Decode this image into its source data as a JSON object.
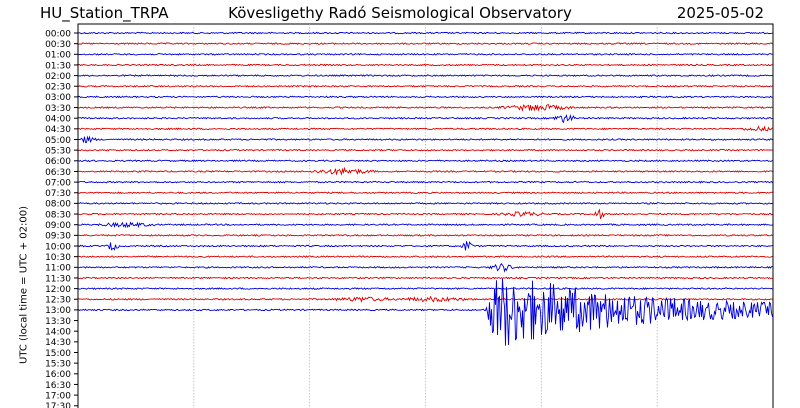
{
  "header": {
    "station": "HU_Station_TRPA",
    "observatory": "Kövesligethy Radó Seismological Observatory",
    "date": "2025-05-02"
  },
  "chart_data": {
    "type": "line",
    "title": "Kövesligethy Radó Seismological Observatory",
    "ylabel": "UTC (local time = UTC + 02:00)",
    "rows": [
      "00:00",
      "00:30",
      "01:00",
      "01:30",
      "02:00",
      "02:30",
      "03:00",
      "03:30",
      "04:00",
      "04:30",
      "05:00",
      "05:30",
      "06:00",
      "06:30",
      "07:00",
      "07:30",
      "08:00",
      "08:30",
      "09:00",
      "09:30",
      "10:00",
      "10:30",
      "11:00",
      "11:30",
      "12:00",
      "12:30",
      "13:00",
      "13:30",
      "14:00",
      "14:30",
      "15:00",
      "15:30",
      "16:00",
      "16:30",
      "17:00",
      "17:30"
    ],
    "recorded_rows": 27,
    "trace_colors": [
      "#0000dd",
      "#dd0000"
    ],
    "events": [
      {
        "row": "03:30",
        "x": 0.66,
        "amplitude": 3,
        "width": 0.06
      },
      {
        "row": "04:00",
        "x": 0.7,
        "amplitude": 4,
        "width": 0.02
      },
      {
        "row": "04:30",
        "x": 0.98,
        "amplitude": 2,
        "width": 0.03
      },
      {
        "row": "05:00",
        "x": 0.01,
        "amplitude": 3,
        "width": 0.02
      },
      {
        "row": "06:30",
        "x": 0.38,
        "amplitude": 3,
        "width": 0.05
      },
      {
        "row": "08:30",
        "x": 0.75,
        "amplitude": 5,
        "width": 0.01
      },
      {
        "row": "08:30",
        "x": 0.64,
        "amplitude": 2,
        "width": 0.04
      },
      {
        "row": "09:00",
        "x": 0.07,
        "amplitude": 2,
        "width": 0.05
      },
      {
        "row": "10:00",
        "x": 0.05,
        "amplitude": 5,
        "width": 0.01
      },
      {
        "row": "10:00",
        "x": 0.56,
        "amplitude": 6,
        "width": 0.01
      },
      {
        "row": "11:00",
        "x": 0.61,
        "amplitude": 4,
        "width": 0.02
      },
      {
        "row": "12:30",
        "x": 0.51,
        "amplitude": 2,
        "width": 0.06
      },
      {
        "row": "12:30",
        "x": 0.41,
        "amplitude": 2,
        "width": 0.05
      }
    ],
    "earthquake": {
      "row": "13:00",
      "onset": 0.585,
      "peak_amplitude": 36,
      "coda_end": 1.0
    },
    "grid": true
  }
}
